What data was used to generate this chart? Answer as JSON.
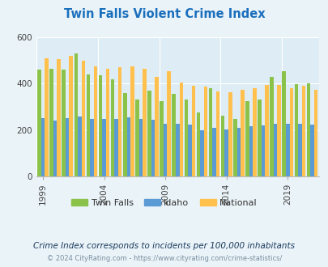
{
  "title": "Twin Falls Violent Crime Index",
  "years": [
    1999,
    2000,
    2001,
    2002,
    2003,
    2004,
    2005,
    2006,
    2007,
    2008,
    2009,
    2010,
    2011,
    2012,
    2013,
    2014,
    2015,
    2016,
    2017,
    2018,
    2019,
    2020,
    2021
  ],
  "twin_falls": [
    460,
    463,
    462,
    530,
    440,
    438,
    420,
    360,
    330,
    370,
    325,
    355,
    330,
    275,
    380,
    260,
    248,
    323,
    330,
    430,
    455,
    398,
    400
  ],
  "idaho": [
    250,
    242,
    250,
    258,
    248,
    248,
    248,
    253,
    248,
    243,
    228,
    228,
    222,
    200,
    208,
    203,
    208,
    215,
    218,
    228,
    228,
    228,
    223
  ],
  "national": [
    510,
    507,
    520,
    498,
    475,
    465,
    470,
    475,
    465,
    430,
    455,
    405,
    390,
    388,
    365,
    363,
    373,
    382,
    395,
    396,
    380,
    390,
    375
  ],
  "twin_falls_color": "#8bc34a",
  "idaho_color": "#5b9bd5",
  "national_color": "#ffc04d",
  "bg_color": "#eaf3f8",
  "plot_bg_color": "#deedf5",
  "title_color": "#1a6fbd",
  "grid_color": "#ffffff",
  "ylabel_max": 600,
  "yticks": [
    0,
    200,
    400,
    600
  ],
  "tick_years": [
    1999,
    2004,
    2009,
    2014,
    2019
  ],
  "subtitle": "Crime Index corresponds to incidents per 100,000 inhabitants",
  "footer": "© 2024 CityRating.com - https://www.cityrating.com/crime-statistics/",
  "legend_labels": [
    "Twin Falls",
    "Idaho",
    "National"
  ]
}
